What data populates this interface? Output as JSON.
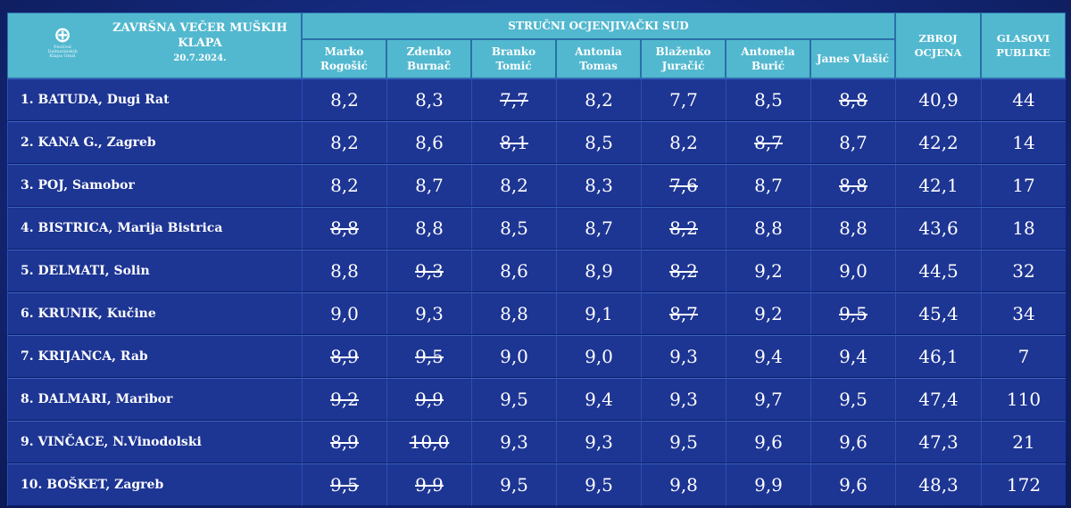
{
  "event": {
    "title_line1": "ZAVRŠNA VEČER MUŠKIH",
    "title_line2": "KLAPA",
    "date": "20.7.2024.",
    "logo_text_line1": "Festival",
    "logo_text_line2": "Dalmatinskih",
    "logo_text_line3": "Klapa Omiš"
  },
  "header": {
    "jury_group": "STRUČNI OCJENJIVAČKI SUD",
    "judges": [
      {
        "line1": "Marko",
        "line2": "Rogošić"
      },
      {
        "line1": "Zdenko",
        "line2": "Burnač"
      },
      {
        "line1": "Branko",
        "line2": "Tomić"
      },
      {
        "line1": "Antonia",
        "line2": "Tomas"
      },
      {
        "line1": "Blaženko",
        "line2": "Juračić"
      },
      {
        "line1": "Antonela",
        "line2": "Burić"
      },
      {
        "line1": "Janes Vlašić",
        "line2": ""
      }
    ],
    "total_line1": "ZBROJ",
    "total_line2": "OCJENA",
    "votes_line1": "GLASOVI",
    "votes_line2": "PUBLIKE"
  },
  "rows": [
    {
      "label": "1.  BATUDA, Dugi Rat",
      "scores": [
        "8,2",
        "8,3",
        "7,7",
        "8,2",
        "7,7",
        "8,5",
        "8,8"
      ],
      "struck": [
        false,
        false,
        true,
        false,
        false,
        false,
        true
      ],
      "total": "40,9",
      "votes": "44"
    },
    {
      "label": "2.  KANA G., Zagreb",
      "scores": [
        "8,2",
        "8,6",
        "8,1",
        "8,5",
        "8,2",
        "8,7",
        "8,7"
      ],
      "struck": [
        false,
        false,
        true,
        false,
        false,
        true,
        false
      ],
      "total": "42,2",
      "votes": "14"
    },
    {
      "label": "3.  POJ, Samobor",
      "scores": [
        "8,2",
        "8,7",
        "8,2",
        "8,3",
        "7,6",
        "8,7",
        "8,8"
      ],
      "struck": [
        false,
        false,
        false,
        false,
        true,
        false,
        true
      ],
      "total": "42,1",
      "votes": "17"
    },
    {
      "label": "4.  BISTRICA, Marija Bistrica",
      "scores": [
        "8,8",
        "8,8",
        "8,5",
        "8,7",
        "8,2",
        "8,8",
        "8,8"
      ],
      "struck": [
        true,
        false,
        false,
        false,
        true,
        false,
        false
      ],
      "total": "43,6",
      "votes": "18"
    },
    {
      "label": "5.  DELMATI, Solin",
      "scores": [
        "8,8",
        "9,3",
        "8,6",
        "8,9",
        "8,2",
        "9,2",
        "9,0"
      ],
      "struck": [
        false,
        true,
        false,
        false,
        true,
        false,
        false
      ],
      "total": "44,5",
      "votes": "32"
    },
    {
      "label": "6.  KRUNIK, Kučine",
      "scores": [
        "9,0",
        "9,3",
        "8,8",
        "9,1",
        "8,7",
        "9,2",
        "9,5"
      ],
      "struck": [
        false,
        false,
        false,
        false,
        true,
        false,
        true
      ],
      "total": "45,4",
      "votes": "34"
    },
    {
      "label": "7.  KRIJANCA, Rab",
      "scores": [
        "8,9",
        "9,5",
        "9,0",
        "9,0",
        "9,3",
        "9,4",
        "9,4"
      ],
      "struck": [
        true,
        true,
        false,
        false,
        false,
        false,
        false
      ],
      "total": "46,1",
      "votes": "7"
    },
    {
      "label": "8.  DALMARI, Maribor",
      "scores": [
        "9,2",
        "9,9",
        "9,5",
        "9,4",
        "9,3",
        "9,7",
        "9,5"
      ],
      "struck": [
        true,
        true,
        false,
        false,
        false,
        false,
        false
      ],
      "total": "47,4",
      "votes": "110"
    },
    {
      "label": "9.  VINČACE, N.Vinodolski",
      "scores": [
        "8,9",
        "10,0",
        "9,3",
        "9,3",
        "9,5",
        "9,6",
        "9,6"
      ],
      "struck": [
        true,
        true,
        false,
        false,
        false,
        false,
        false
      ],
      "total": "47,3",
      "votes": "21"
    },
    {
      "label": "10.  BOŠKET, Zagreb",
      "scores": [
        "9,5",
        "9,9",
        "9,5",
        "9,5",
        "9,8",
        "9,9",
        "9,6"
      ],
      "struck": [
        true,
        true,
        false,
        false,
        false,
        false,
        false
      ],
      "total": "48,3",
      "votes": "172"
    }
  ]
}
